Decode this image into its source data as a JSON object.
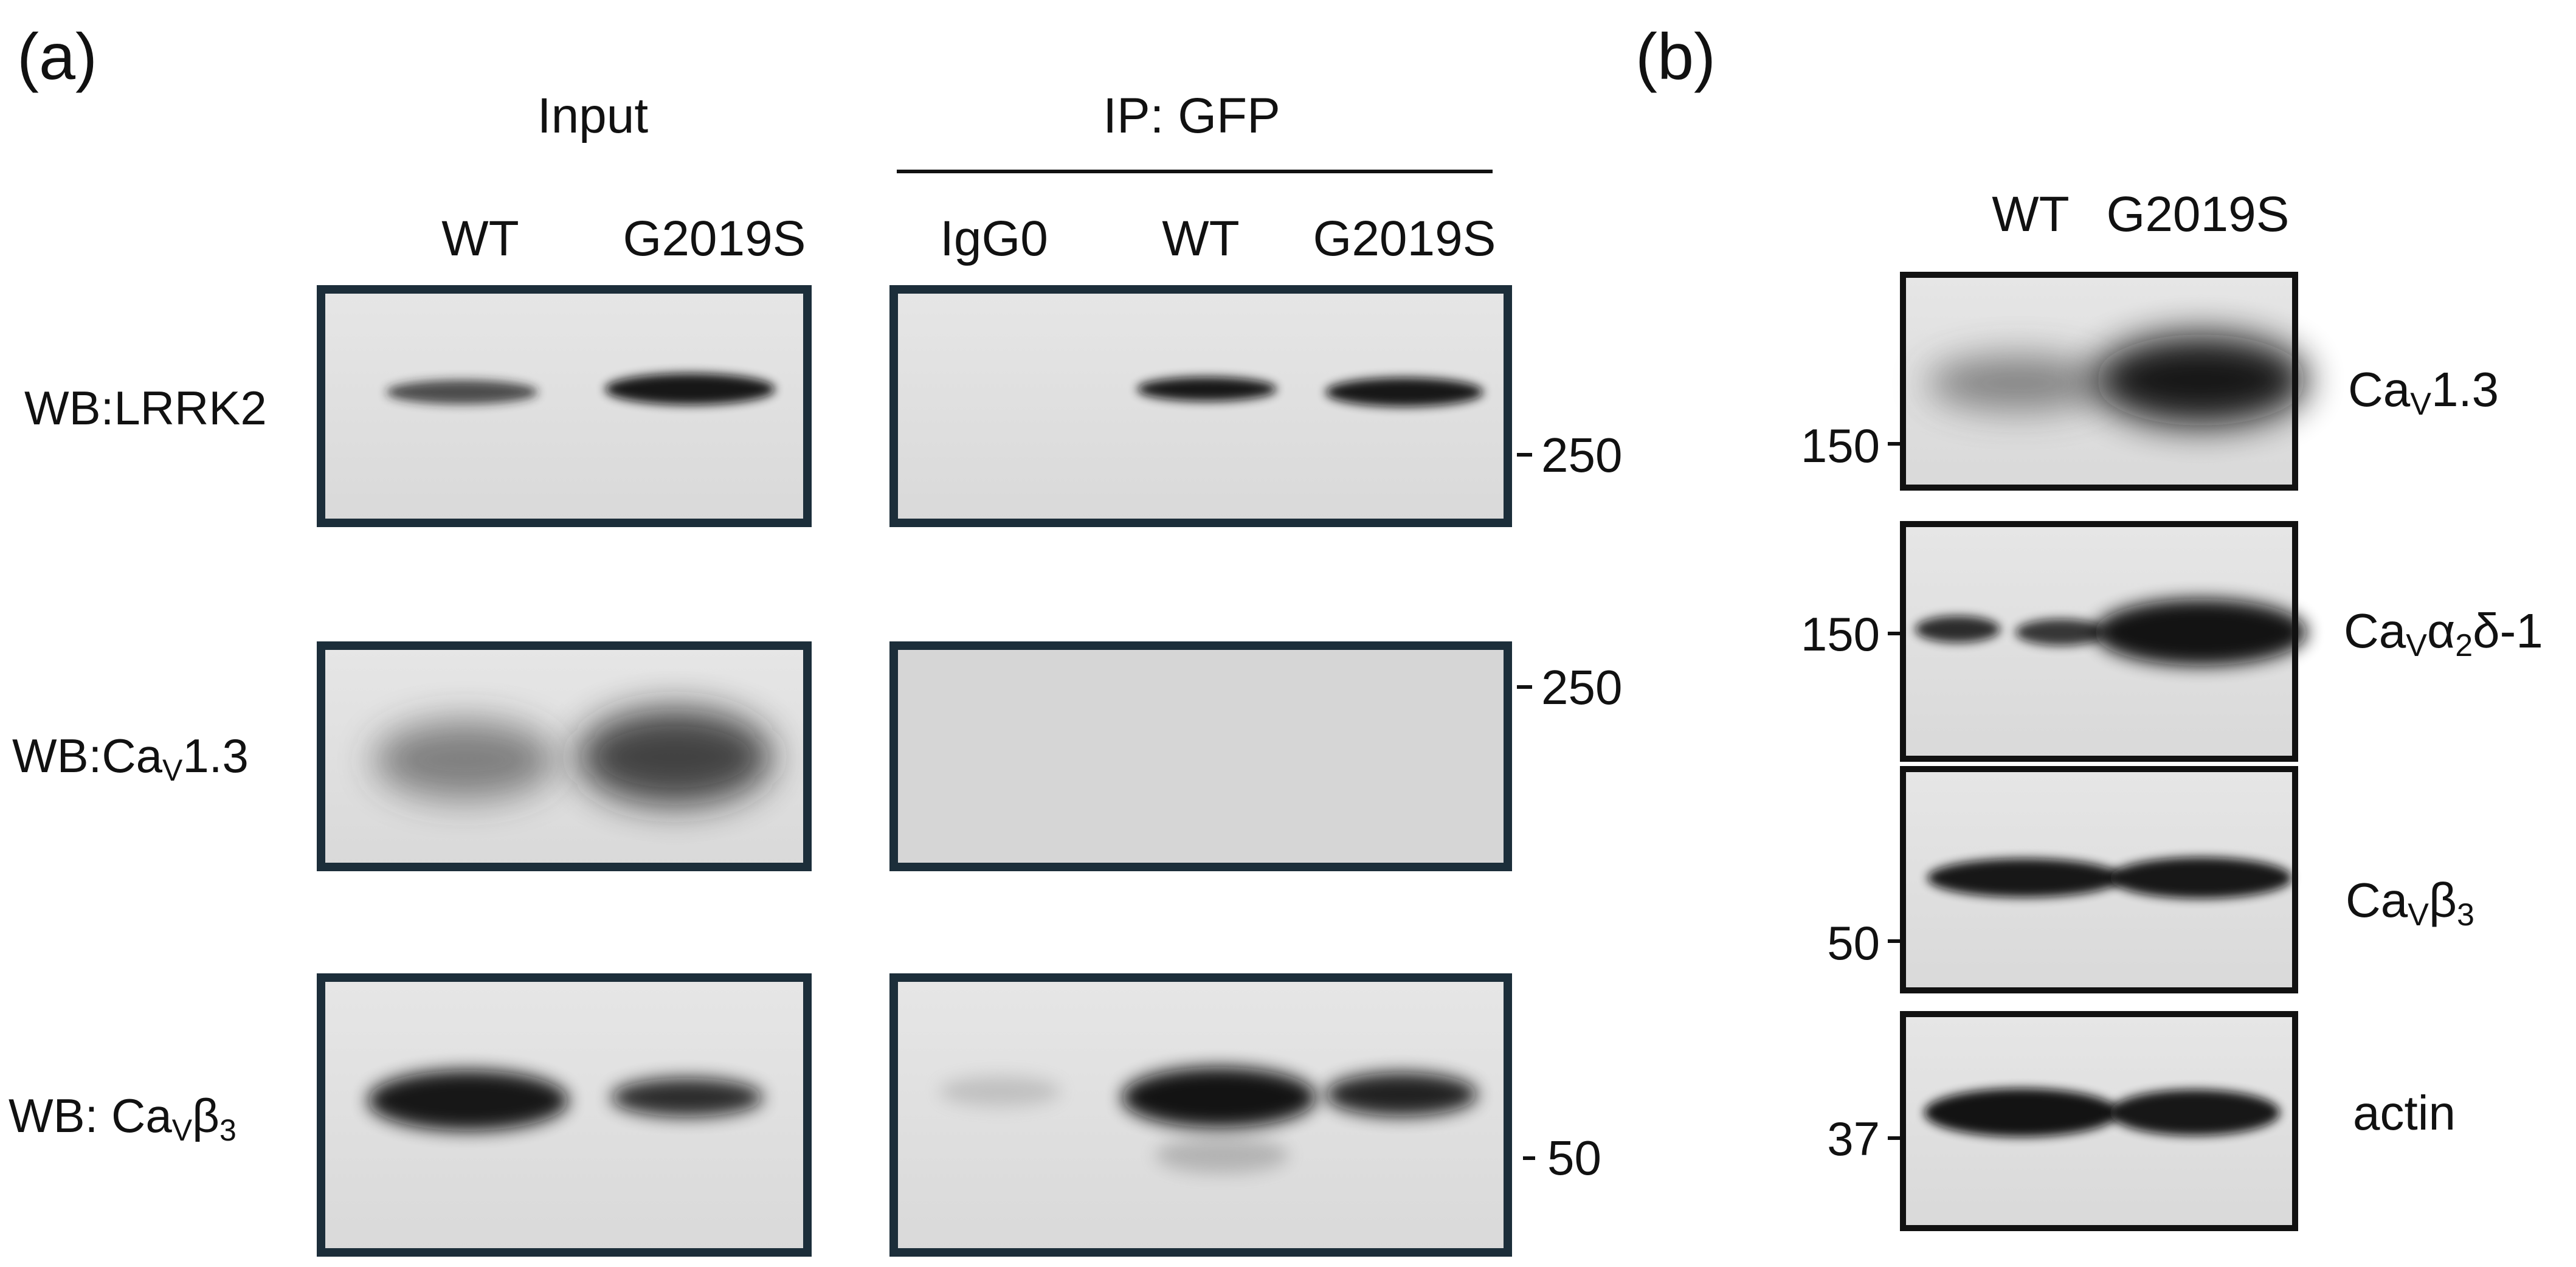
{
  "panel_a": {
    "label": "(a)",
    "input_header": "Input",
    "ip_header": "IP: GFP",
    "input_lanes": [
      "WT",
      "G2019S"
    ],
    "ip_lanes": [
      "IgG0",
      "WT",
      "G2019S"
    ],
    "rows": [
      {
        "wb_prefix": "WB:LRRK2",
        "wb_main": "",
        "wb_sub_v": "",
        "wb_tail": "",
        "wb_beta": "",
        "wb_sub3": "",
        "marker": "250"
      },
      {
        "wb_prefix": "WB:",
        "wb_main": "Ca",
        "wb_sub_v": "V",
        "wb_tail": "1.3",
        "wb_beta": "",
        "wb_sub3": "",
        "marker": "250"
      },
      {
        "wb_prefix": "WB: ",
        "wb_main": "Ca",
        "wb_sub_v": "V",
        "wb_tail": "",
        "wb_beta": "β",
        "wb_sub3": "3",
        "marker": "50"
      }
    ]
  },
  "panel_b": {
    "label": "(b)",
    "lanes": [
      "WT",
      "G2019S"
    ],
    "rows": [
      {
        "marker": "150",
        "name_main": "Ca",
        "name_sub_v": "V",
        "name_tail": "1.3",
        "name_alpha": "",
        "name_sub2": "",
        "name_rest": ""
      },
      {
        "marker": "150",
        "name_main": "Ca",
        "name_sub_v": "V",
        "name_tail": "",
        "name_alpha": "α",
        "name_sub2": "2",
        "name_rest": "δ-1"
      },
      {
        "marker": "50",
        "name_main": "Ca",
        "name_sub_v": "V",
        "name_tail": "",
        "name_alpha": "β",
        "name_sub2": "3",
        "name_rest": ""
      },
      {
        "marker": "37",
        "name_main": "actin",
        "name_sub_v": "",
        "name_tail": "",
        "name_alpha": "",
        "name_sub2": "",
        "name_rest": ""
      }
    ]
  },
  "colors": {
    "frame": "#1c2e3a",
    "blot_bg": "#e4e4e4",
    "band": "#0d0d0d"
  }
}
